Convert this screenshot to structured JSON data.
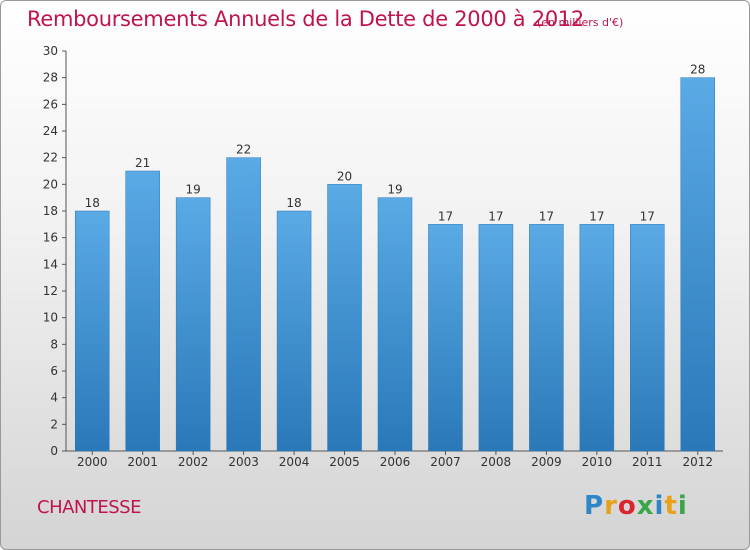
{
  "title": "Remboursements Annuels de la Dette de 2000 à 2012",
  "subtitle": "(en milliers d'€)",
  "commune": "CHANTESSE",
  "logo": {
    "text": "Proxiti",
    "colors": [
      "#2e86c8",
      "#e8a21a",
      "#d8262e",
      "#3aa64a",
      "#2e86c8",
      "#e8a21a",
      "#3aa64a"
    ]
  },
  "colors": {
    "accent": "#c0144c",
    "bar_top": "#5aaae6",
    "bar_bottom": "#2a78b8"
  },
  "chart_data": {
    "type": "bar",
    "title": "Remboursements Annuels de la Dette de 2000 à 2012",
    "categories": [
      "2000",
      "2001",
      "2002",
      "2003",
      "2004",
      "2005",
      "2006",
      "2007",
      "2008",
      "2009",
      "2010",
      "2011",
      "2012"
    ],
    "values": [
      18,
      21,
      19,
      22,
      18,
      20,
      19,
      17,
      17,
      17,
      17,
      17,
      28
    ],
    "ylim": [
      0,
      30
    ],
    "yticks": [
      0,
      2,
      4,
      6,
      8,
      10,
      12,
      14,
      16,
      18,
      20,
      22,
      24,
      26,
      28,
      30
    ],
    "grid": false,
    "legend": "none"
  }
}
